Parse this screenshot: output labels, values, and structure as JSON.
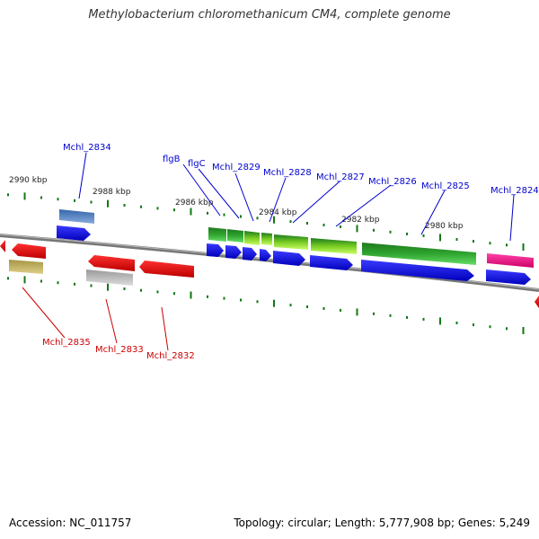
{
  "title": "Methylobacterium chloromethanicum CM4, complete genome",
  "accession": "Accession: NC_011757",
  "stats": "Topology: circular; Length: 5,777,908 bp; Genes: 5,249",
  "kbp_labels": [
    "2990 kbp",
    "2988 kbp",
    "2986 kbp",
    "2984 kbp",
    "2982 kbp",
    "2980 kbp"
  ],
  "gene_labels_top": [
    "Mchl_2834",
    "flgB",
    "flgC",
    "Mchl_2829",
    "Mchl_2828",
    "Mchl_2827",
    "Mchl_2826",
    "Mchl_2825",
    "Mchl_2824"
  ],
  "gene_labels_bottom": [
    "Mchl_2835",
    "Mchl_2833",
    "Mchl_2832"
  ],
  "colors": {
    "label_top": "#0000cc",
    "label_bottom": "#cc0000",
    "cds_blue": "#0000ee",
    "feature_green": "#33aa33",
    "feature_red": "#ee0000",
    "feature_pink": "#ee1188",
    "feature_steelblue": "#4477aa",
    "feature_khaki": "#bbaa55",
    "feature_gray": "#bbbbbb",
    "feature_lightgreen": "#88dd22",
    "backbone": "#777777",
    "tick": "#117711"
  }
}
